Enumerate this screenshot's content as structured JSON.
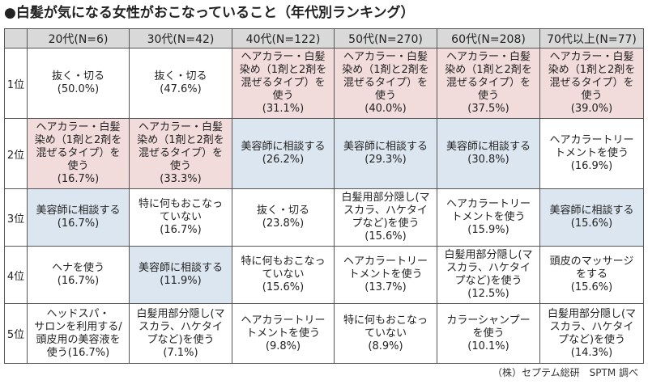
{
  "title": "●白髪が気になる女性がおこなっていること（年代別ランキング）",
  "credit": "（株）セプテム総研　SPTM 調べ",
  "header": {
    "corner": "",
    "columns": [
      "20代(N=6)",
      "30代(N=42)",
      "40代(N=122)",
      "50代(N=270)",
      "60代(N=208)",
      "70代以上(N=77)"
    ]
  },
  "colors": {
    "pink": "#f2dcdb",
    "blue": "#dce6f1",
    "header": "#d9d9d9",
    "white": "#ffffff"
  },
  "rows": [
    {
      "rank": "1位",
      "cells": [
        {
          "text": "抜く・切る",
          "pct": "(50.0%)",
          "color": "white"
        },
        {
          "text": "抜く・切る",
          "pct": "(47.6%)",
          "color": "white"
        },
        {
          "text": "ヘアカラー・白髪\n染め（1剤と2剤を\n混ぜるタイプ）を\n使う",
          "pct": "(31.1%)",
          "color": "pink"
        },
        {
          "text": "ヘアカラー・白髪\n染め（1剤と2剤を\n混ぜるタイプ）を\n使う",
          "pct": "(40.0%)",
          "color": "pink"
        },
        {
          "text": "ヘアカラー・白髪\n染め（1剤と2剤を\n混ぜるタイプ）を\n使う",
          "pct": "(37.5%)",
          "color": "pink"
        },
        {
          "text": "ヘアカラー・白髪\n染め（1剤と2剤を\n混ぜるタイプ）を\n使う",
          "pct": "(39.0%)",
          "color": "pink"
        }
      ]
    },
    {
      "rank": "2位",
      "cells": [
        {
          "text": "ヘアカラー・白髪\n染め（1剤と2剤を\n混ぜるタイプ）を\n使う",
          "pct": "(16.7%)",
          "color": "pink"
        },
        {
          "text": "ヘアカラー・白髪\n染め（1剤と2剤を\n混ぜるタイプ）を\n使う",
          "pct": "(33.3%)",
          "color": "pink"
        },
        {
          "text": "美容師に相談する",
          "pct": "(26.2%)",
          "color": "blue"
        },
        {
          "text": "美容師に相談する",
          "pct": "(29.3%)",
          "color": "blue"
        },
        {
          "text": "美容師に相談する",
          "pct": "(30.8%)",
          "color": "blue"
        },
        {
          "text": "ヘアカラートリー\nトメントを使う",
          "pct": "(16.9%)",
          "color": "white"
        }
      ]
    },
    {
      "rank": "3位",
      "cells": [
        {
          "text": "美容師に相談する",
          "pct": "(16.7%)",
          "color": "blue"
        },
        {
          "text": "特に何もおこなっ\nていない",
          "pct": "(16.7%)",
          "color": "white"
        },
        {
          "text": "抜く・切る",
          "pct": "(23.8%)",
          "color": "white"
        },
        {
          "text": "白髪用部分隠し(マ\nスカラ、ハケタイ\nプなど)を使う",
          "pct": "(15.6%)",
          "color": "white"
        },
        {
          "text": "ヘアカラートリー\nトメントを使う",
          "pct": "(15.9%)",
          "color": "white"
        },
        {
          "text": "美容師に相談する",
          "pct": "(15.6%)",
          "color": "blue"
        }
      ]
    },
    {
      "rank": "4位",
      "cells": [
        {
          "text": "ヘナを使う",
          "pct": "(16.7%)",
          "color": "white"
        },
        {
          "text": "美容師に相談する",
          "pct": "(11.9%)",
          "color": "blue"
        },
        {
          "text": "特に何もおこなっ\nていない",
          "pct": "(15.6%)",
          "color": "white"
        },
        {
          "text": "ヘアカラートリー\nトメントを使う",
          "pct": "(13.7%)",
          "color": "white"
        },
        {
          "text": "白髪用部分隠し(マ\nスカラ、ハケタイ\nプなど)を使う",
          "pct": "(12.5%)",
          "color": "white"
        },
        {
          "text": "頭皮のマッサージ\nをする",
          "pct": "(15.6%)",
          "color": "white"
        }
      ]
    },
    {
      "rank": "5位",
      "cells": [
        {
          "text": "ヘッドスパ・\nサロンを利用する/\n頭皮用の美容液を\n使う(16.7%)",
          "pct": "",
          "color": "white"
        },
        {
          "text": "白髪用部分隠し(マ\nスカラ、ハケタイ\nプなど)を使う",
          "pct": "(7.1%)",
          "color": "white"
        },
        {
          "text": "ヘアカラートリー\nトメントを使う",
          "pct": "(9.8%)",
          "color": "white"
        },
        {
          "text": "特に何もおこなっ\nていない",
          "pct": "(8.9%)",
          "color": "white"
        },
        {
          "text": "カラーシャンプー\nを使う",
          "pct": "(10.1%)",
          "color": "white"
        },
        {
          "text": "白髪用部分隠し(マ\nスカラ、ハケタイ\nプなど)を使う",
          "pct": "(14.3%)",
          "color": "white"
        }
      ]
    }
  ]
}
